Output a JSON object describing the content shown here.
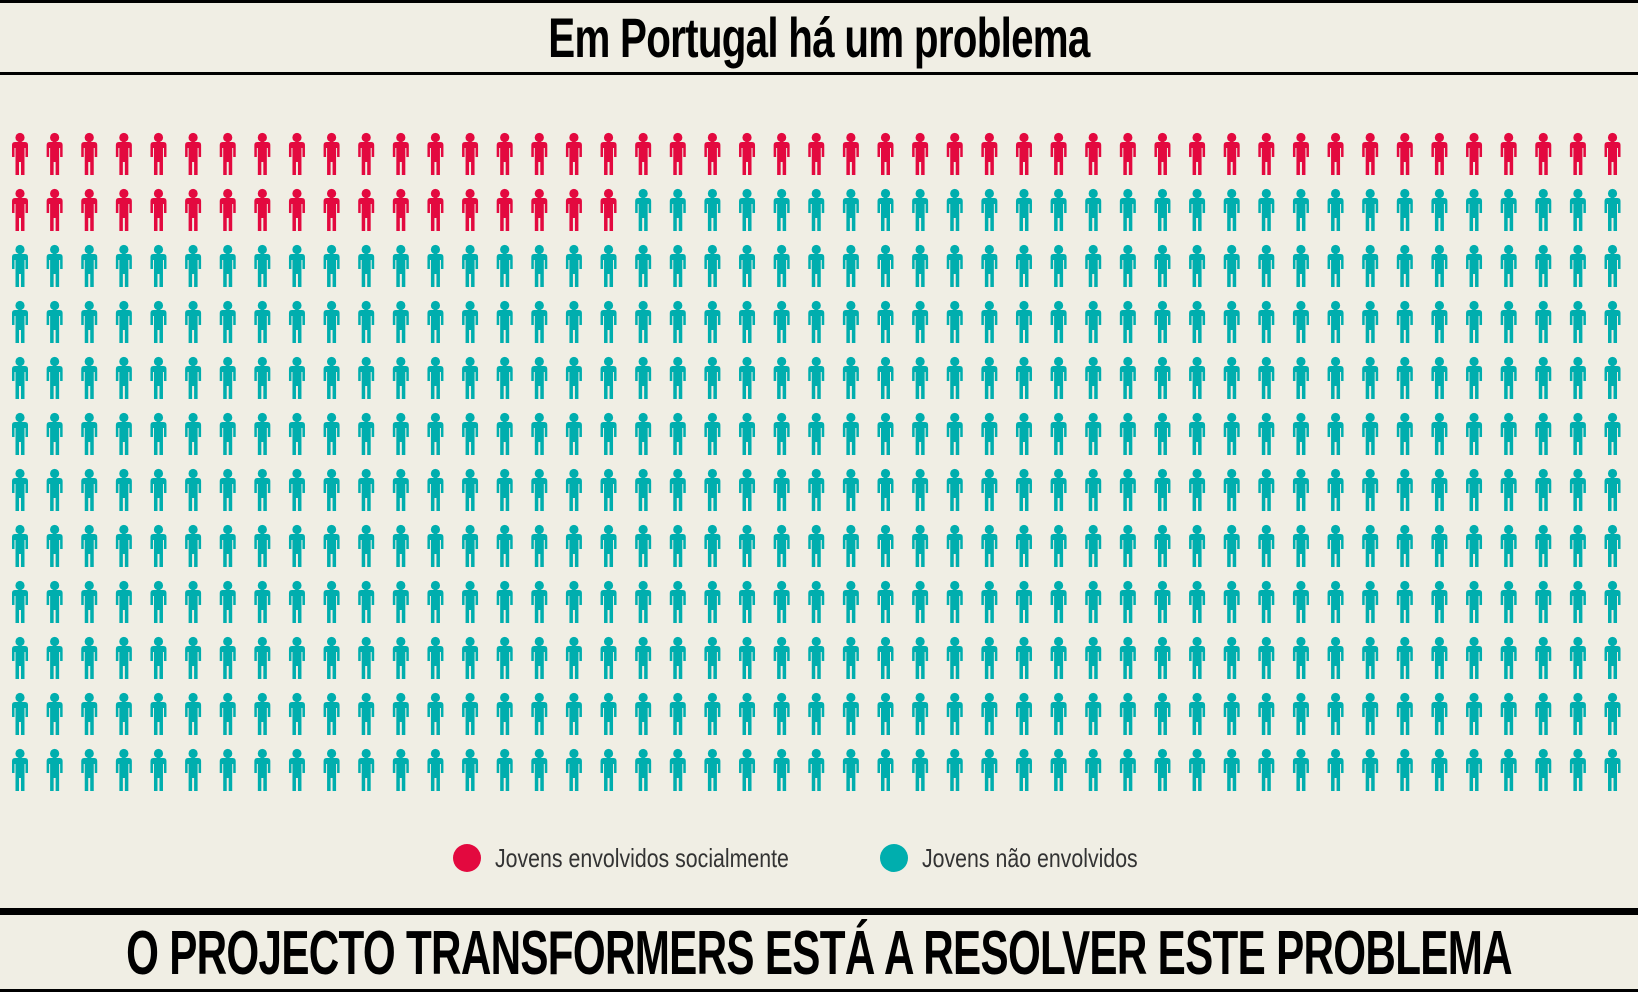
{
  "header": {
    "title": "Em Portugal há um problema"
  },
  "chart_data": {
    "type": "pictogram",
    "columns": 47,
    "rows": 12,
    "total_icons": 564,
    "series": [
      {
        "name": "Jovens envolvidos socialmente",
        "count": 65,
        "color": "#e3093f"
      },
      {
        "name": "Jovens não envolvidos",
        "count": 499,
        "color": "#00aeae"
      }
    ],
    "icon": "person-icon"
  },
  "legend": {
    "items": [
      {
        "label": "Jovens envolvidos socialmente",
        "color": "#e3093f"
      },
      {
        "label": "Jovens não envolvidos",
        "color": "#00aeae"
      }
    ]
  },
  "footer": {
    "cta": "O PROJECTO TRANSFORMERS ESTÁ A RESOLVER ESTE PROBLEMA"
  }
}
